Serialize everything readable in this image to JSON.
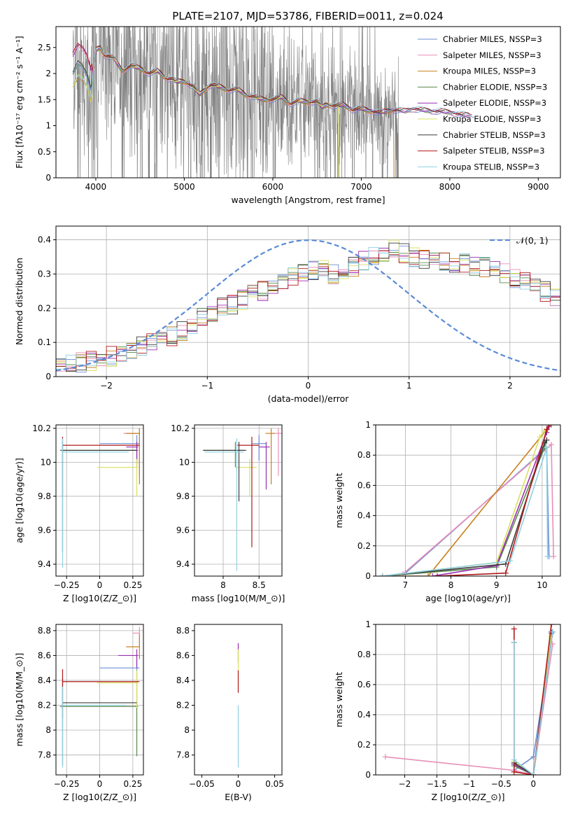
{
  "figure": {
    "title": "PLATE=2107, MJD=53786, FIBERID=0011, z=0.024"
  },
  "colors": {
    "Chabrier MILES": "#6b8fd6",
    "Salpeter MILES": "#e88fb8",
    "Kroupa MILES": "#c8801e",
    "Chabrier ELODIE": "#5a8a4a",
    "Salpeter ELODIE": "#9b2fb3",
    "Kroupa ELODIE": "#d9e060",
    "Chabrier STELIB": "#3d3d3d",
    "Salpeter STELIB": "#b01a1a",
    "Kroupa STELIB": "#8fd0e0",
    "data": "#808080",
    "normal": "#5b8bd6",
    "grid": "#b0b0b0"
  },
  "chart_data": [
    {
      "id": "spectrum",
      "type": "line",
      "title": "PLATE=2107, MJD=53786, FIBERID=0011, z=0.024",
      "xlabel": "wavelength [Angstrom, rest frame]",
      "ylabel": "Flux [f$_\\lambda$10$^{-17}$ erg cm$^{-2}$ s$^{-1}$ A$^{-1}$]",
      "xlim": [
        3550,
        9250
      ],
      "ylim": [
        0,
        2.9
      ],
      "xticks": [
        4000,
        5000,
        6000,
        7000,
        8000,
        9000
      ],
      "yticks": [
        0.0,
        0.5,
        1.0,
        1.5,
        2.0,
        2.5
      ],
      "grid": false,
      "legend_position": "top-right",
      "legend": [
        "Chabrier MILES, N$_{SSP}$=3",
        "Salpeter MILES, N$_{SSP}$=3",
        "Kroupa MILES, N$_{SSP}$=3",
        "Chabrier ELODIE, N$_{SSP}$=3",
        "Salpeter ELODIE, N$_{SSP}$=3",
        "Kroupa ELODIE, N$_{SSP}$=3",
        "Chabrier STELIB, N$_{SSP}$=3",
        "Salpeter STELIB, N$_{SSP}$=3",
        "Kroupa STELIB, N$_{SSP}$=3"
      ],
      "data_range": [
        3740,
        7420
      ],
      "model_curve": {
        "x": [
          3740,
          3800,
          3850,
          3900,
          3950,
          4000,
          4050,
          4100,
          4200,
          4300,
          4400,
          4500,
          4600,
          4700,
          4800,
          4861,
          4900,
          5000,
          5100,
          5175,
          5250,
          5300,
          5400,
          5500,
          5600,
          5700,
          5800,
          5893,
          6000,
          6100,
          6200,
          6300,
          6400,
          6500,
          6563,
          6600,
          6700,
          6800,
          6900,
          7000,
          7100,
          7200,
          7300,
          7400,
          7500,
          7600,
          7700,
          7800,
          7900,
          8000,
          8100,
          8200
        ],
        "y": [
          2.0,
          2.2,
          2.15,
          2.0,
          1.7,
          2.45,
          2.5,
          2.35,
          2.3,
          2.05,
          2.15,
          2.1,
          2.0,
          2.05,
          1.9,
          1.9,
          1.85,
          1.85,
          1.75,
          1.6,
          1.72,
          1.78,
          1.75,
          1.68,
          1.7,
          1.58,
          1.55,
          1.5,
          1.5,
          1.55,
          1.42,
          1.48,
          1.45,
          1.46,
          1.35,
          1.4,
          1.38,
          1.4,
          1.3,
          1.33,
          1.28,
          1.25,
          1.28,
          1.3,
          1.28,
          1.32,
          1.3,
          1.27,
          1.28,
          1.25,
          1.22,
          1.2
        ]
      },
      "curve_ends": [
        8280,
        8240,
        7370,
        8210,
        8230,
        6740,
        8220,
        8260,
        8250
      ]
    },
    {
      "id": "residuals",
      "type": "histogram",
      "xlabel": "(data-model)/error",
      "ylabel": "Normed distribution",
      "xlim": [
        -2.5,
        2.5
      ],
      "ylim": [
        0,
        0.44
      ],
      "xticks": [
        -2,
        -1,
        0,
        1,
        2
      ],
      "yticks": [
        0.0,
        0.1,
        0.2,
        0.3,
        0.4
      ],
      "grid": true,
      "legend_position": "top-right",
      "normal_label": "$\\mathcal{N}(0,1)$",
      "bin_width": 0.1,
      "bin_start": -2.5,
      "base_profile": [
        0.03,
        0.035,
        0.04,
        0.045,
        0.05,
        0.06,
        0.07,
        0.08,
        0.09,
        0.1,
        0.11,
        0.12,
        0.135,
        0.15,
        0.17,
        0.19,
        0.2,
        0.21,
        0.225,
        0.24,
        0.25,
        0.265,
        0.28,
        0.29,
        0.3,
        0.31,
        0.31,
        0.3,
        0.3,
        0.32,
        0.34,
        0.35,
        0.36,
        0.37,
        0.36,
        0.35,
        0.34,
        0.345,
        0.34,
        0.335,
        0.33,
        0.325,
        0.32,
        0.31,
        0.3,
        0.29,
        0.28,
        0.27,
        0.25,
        0.235,
        0.22,
        0.205,
        0.19,
        0.175,
        0.16,
        0.15,
        0.14,
        0.13,
        0.12,
        0.11,
        0.1,
        0.09,
        0.08,
        0.07,
        0.065,
        0.06,
        0.055,
        0.05,
        0.045,
        0.04,
        0.04,
        0.035,
        0.035,
        0.03,
        0.03
      ]
    },
    {
      "id": "age-vs-Z",
      "type": "errorbar",
      "xlabel": "Z [log$_{10}$($Z/Z_\\odot$)]",
      "ylabel": "age  [log$_{10}$($age/yr$)]",
      "xlim": [
        -0.33,
        0.33
      ],
      "ylim": [
        9.33,
        10.22
      ],
      "xticks": [
        -0.25,
        0.0,
        0.25
      ],
      "yticks": [
        9.4,
        9.6,
        9.8,
        10.0,
        10.2
      ],
      "grid": true,
      "points": [
        {
          "model": "Chabrier MILES",
          "x": 0.28,
          "xerr": [
            0.28,
            0.02
          ],
          "y": 10.11,
          "yerr": [
            0.1,
            0.05
          ]
        },
        {
          "model": "Salpeter MILES",
          "x": 0.3,
          "xerr": [
            0.12,
            0.0
          ],
          "y": 10.17,
          "yerr": [
            0.25,
            0.03
          ]
        },
        {
          "model": "Kroupa MILES",
          "x": 0.3,
          "xerr": [
            0.1,
            0.0
          ],
          "y": 10.17,
          "yerr": [
            0.3,
            0.03
          ]
        },
        {
          "model": "Chabrier ELODIE",
          "x": 0.28,
          "xerr": [
            0.58,
            0.01
          ],
          "y": 10.07,
          "yerr": [
            0.1,
            0.05
          ]
        },
        {
          "model": "Salpeter ELODIE",
          "x": 0.28,
          "xerr": [
            0.08,
            0.01
          ],
          "y": 10.09,
          "yerr": [
            0.1,
            0.03
          ]
        },
        {
          "model": "Kroupa ELODIE",
          "x": 0.28,
          "xerr": [
            0.3,
            0.01
          ],
          "y": 9.97,
          "yerr": [
            0.17,
            0.05
          ]
        },
        {
          "model": "Chabrier STELIB",
          "x": -0.28,
          "xerr": [
            0.0,
            0.56
          ],
          "y": 10.07,
          "yerr": [
            0.6,
            0.05
          ]
        },
        {
          "model": "Salpeter STELIB",
          "x": -0.28,
          "xerr": [
            0.0,
            0.58
          ],
          "y": 10.1,
          "yerr": [
            0.3,
            0.05
          ]
        },
        {
          "model": "Kroupa STELIB",
          "x": -0.28,
          "xerr": [
            0.0,
            0.5
          ],
          "y": 10.06,
          "yerr": [
            0.68,
            0.08
          ]
        }
      ]
    },
    {
      "id": "age-vs-mass",
      "type": "errorbar",
      "xlabel": "mass [log$_{10}$($M/M_\\odot$)]",
      "ylabel": "",
      "xlim": [
        7.6,
        8.82
      ],
      "ylim": [
        9.33,
        10.22
      ],
      "xticks": [
        8.0,
        8.5
      ],
      "yticks": [
        9.4,
        9.6,
        9.8,
        10.0,
        10.2
      ],
      "grid": true,
      "points": [
        {
          "model": "Chabrier MILES",
          "x": 8.5,
          "xerr": [
            0.1,
            0.1
          ],
          "y": 10.11,
          "yerr": [
            0.1,
            0.05
          ]
        },
        {
          "model": "Salpeter MILES",
          "x": 8.77,
          "xerr": [
            0.08,
            0.05
          ],
          "y": 10.17,
          "yerr": [
            0.25,
            0.03
          ]
        },
        {
          "model": "Kroupa MILES",
          "x": 8.67,
          "xerr": [
            0.08,
            0.05
          ],
          "y": 10.17,
          "yerr": [
            0.3,
            0.03
          ]
        },
        {
          "model": "Chabrier ELODIE",
          "x": 8.17,
          "xerr": [
            0.45,
            0.1
          ],
          "y": 10.07,
          "yerr": [
            0.1,
            0.05
          ]
        },
        {
          "model": "Salpeter ELODIE",
          "x": 8.6,
          "xerr": [
            0.1,
            0.05
          ],
          "y": 10.09,
          "yerr": [
            0.25,
            0.03
          ]
        },
        {
          "model": "Kroupa ELODIE",
          "x": 8.37,
          "xerr": [
            0.2,
            0.1
          ],
          "y": 9.97,
          "yerr": [
            0.17,
            0.05
          ]
        },
        {
          "model": "Chabrier STELIB",
          "x": 8.22,
          "xerr": [
            0.5,
            0.1
          ],
          "y": 10.07,
          "yerr": [
            0.3,
            0.05
          ]
        },
        {
          "model": "Salpeter STELIB",
          "x": 8.4,
          "xerr": [
            0.2,
            0.1
          ],
          "y": 10.1,
          "yerr": [
            0.6,
            0.05
          ]
        },
        {
          "model": "Kroupa STELIB",
          "x": 8.19,
          "xerr": [
            0.45,
            0.1
          ],
          "y": 10.06,
          "yerr": [
            0.7,
            0.08
          ]
        }
      ]
    },
    {
      "id": "weight-vs-age",
      "type": "line",
      "xlabel": "age  [log$_{10}$($age/yr$)]",
      "ylabel": "mass weight",
      "xlim": [
        6.35,
        10.4
      ],
      "ylim": [
        0,
        1.0
      ],
      "xticks": [
        7,
        8,
        9,
        10
      ],
      "yticks": [
        0.0,
        0.2,
        0.4,
        0.6,
        0.8,
        1.0
      ],
      "grid": true,
      "lines": [
        {
          "model": "Chabrier MILES",
          "x": [
            6.5,
            7.0,
            10.1,
            10.15
          ],
          "y": [
            0.0,
            0.02,
            0.85,
            0.13
          ]
        },
        {
          "model": "Salpeter MILES",
          "x": [
            6.5,
            6.95,
            10.2,
            10.25
          ],
          "y": [
            0.0,
            0.015,
            0.87,
            0.13
          ]
        },
        {
          "model": "Kroupa MILES",
          "x": [
            6.5,
            7.5,
            10.1,
            10.2
          ],
          "y": [
            0.0,
            0.0,
            0.97,
            1.0
          ]
        },
        {
          "model": "Chabrier ELODIE",
          "x": [
            6.5,
            9.0,
            10.05,
            10.1
          ],
          "y": [
            0.0,
            0.06,
            0.85,
            0.9
          ]
        },
        {
          "model": "Salpeter ELODIE",
          "x": [
            7.6,
            9.0,
            10.1,
            10.15
          ],
          "y": [
            0.0,
            0.07,
            0.95,
            0.99
          ]
        },
        {
          "model": "Kroupa ELODIE",
          "x": [
            6.5,
            9.0,
            9.95,
            10.05
          ],
          "y": [
            0.0,
            0.09,
            0.92,
            0.96
          ]
        },
        {
          "model": "Chabrier STELIB",
          "x": [
            6.5,
            9.2,
            10.05,
            10.1
          ],
          "y": [
            0.0,
            0.08,
            0.88,
            0.9
          ]
        },
        {
          "model": "Salpeter STELIB",
          "x": [
            7.7,
            9.2,
            10.1,
            10.15
          ],
          "y": [
            0.0,
            0.02,
            0.97,
            1.0
          ]
        },
        {
          "model": "Kroupa STELIB",
          "x": [
            6.5,
            9.3,
            10.1,
            10.12
          ],
          "y": [
            0.0,
            0.1,
            0.85,
            0.13
          ]
        }
      ]
    },
    {
      "id": "mass-vs-Z",
      "type": "errorbar",
      "xlabel": "Z [log$_{10}$($Z/Z_\\odot$)]",
      "ylabel": "mass [log$_{10}$($M/M_\\odot$)]",
      "xlim": [
        -0.33,
        0.33
      ],
      "ylim": [
        7.64,
        8.85
      ],
      "xticks": [
        -0.25,
        0.0,
        0.25
      ],
      "yticks": [
        7.8,
        8.0,
        8.2,
        8.4,
        8.6,
        8.8
      ],
      "grid": true,
      "points": [
        {
          "model": "Chabrier MILES",
          "x": 0.28,
          "xerr": [
            0.28,
            0.02
          ],
          "y": 8.5,
          "yerr": [
            0.1,
            0.1
          ]
        },
        {
          "model": "Salpeter MILES",
          "x": 0.3,
          "xerr": [
            0.05,
            0.0
          ],
          "y": 8.78,
          "yerr": [
            0.1,
            0.05
          ]
        },
        {
          "model": "Kroupa MILES",
          "x": 0.3,
          "xerr": [
            0.1,
            0.0
          ],
          "y": 8.67,
          "yerr": [
            0.1,
            0.1
          ]
        },
        {
          "model": "Chabrier ELODIE",
          "x": 0.28,
          "xerr": [
            0.58,
            0.01
          ],
          "y": 8.19,
          "yerr": [
            0.4,
            0.2
          ]
        },
        {
          "model": "Salpeter ELODIE",
          "x": 0.28,
          "xerr": [
            0.14,
            0.01
          ],
          "y": 8.6,
          "yerr": [
            0.1,
            0.05
          ]
        },
        {
          "model": "Kroupa ELODIE",
          "x": 0.28,
          "xerr": [
            0.3,
            0.01
          ],
          "y": 8.38,
          "yerr": [
            0.2,
            0.1
          ]
        },
        {
          "model": "Chabrier STELIB",
          "x": -0.28,
          "xerr": [
            0.0,
            0.56
          ],
          "y": 8.22,
          "yerr": [
            0.5,
            0.2
          ]
        },
        {
          "model": "Salpeter STELIB",
          "x": -0.28,
          "xerr": [
            0.0,
            0.58
          ],
          "y": 8.39,
          "yerr": [
            0.3,
            0.1
          ]
        },
        {
          "model": "Kroupa STELIB",
          "x": -0.28,
          "xerr": [
            0.0,
            0.48
          ],
          "y": 8.2,
          "yerr": [
            0.5,
            0.15
          ]
        }
      ]
    },
    {
      "id": "mass-vs-ebv",
      "type": "errorbar",
      "xlabel": "E(B-V)",
      "ylabel": "",
      "xlim": [
        -0.06,
        0.06
      ],
      "ylim": [
        7.64,
        8.85
      ],
      "xticks": [
        -0.05,
        0.0,
        0.05
      ],
      "yticks": [
        7.8,
        8.0,
        8.2,
        8.4,
        8.6,
        8.8
      ],
      "grid": false,
      "points": [
        {
          "model": "Salpeter ELODIE",
          "x": 0.0,
          "xerr": [
            0,
            0
          ],
          "y": 8.6,
          "yerr": [
            0.05,
            0.1
          ]
        },
        {
          "model": "Kroupa ELODIE",
          "x": 0.0,
          "xerr": [
            0,
            0
          ],
          "y": 8.55,
          "yerr": [
            0.2,
            0.1
          ]
        },
        {
          "model": "Salpeter STELIB",
          "x": 0.0,
          "xerr": [
            0,
            0
          ],
          "y": 8.4,
          "yerr": [
            0.1,
            0.08
          ]
        },
        {
          "model": "Kroupa STELIB",
          "x": 0.0,
          "xerr": [
            0,
            0
          ],
          "y": 8.0,
          "yerr": [
            0.3,
            0.2
          ]
        }
      ]
    },
    {
      "id": "weight-vs-Z",
      "type": "line",
      "xlabel": "Z [log$_{10}$($Z/Z_\\odot$)]",
      "ylabel": "mass weight",
      "xlim": [
        -2.45,
        0.42
      ],
      "ylim": [
        0,
        1.0
      ],
      "xticks": [
        -2.0,
        -1.5,
        -1.0,
        -0.5,
        0.0
      ],
      "yticks": [
        0.0,
        0.2,
        0.4,
        0.6,
        0.8,
        1.0
      ],
      "grid": true,
      "lines": [
        {
          "model": "Chabrier MILES",
          "x": [
            -0.3,
            0.0,
            0.3
          ],
          "y": [
            0.03,
            0.12,
            0.95
          ]
        },
        {
          "model": "Salpeter MILES",
          "x": [
            -2.3,
            -0.3,
            0.0,
            0.3
          ],
          "y": [
            0.12,
            0.03,
            0.0,
            0.87
          ]
        },
        {
          "model": "Kroupa MILES",
          "x": [
            -0.3,
            0.0,
            0.28
          ],
          "y": [
            0.0,
            0.0,
            1.0
          ]
        },
        {
          "model": "Chabrier ELODIE",
          "x": [
            -0.3,
            0.0,
            0.28
          ],
          "y": [
            0.06,
            0.0,
            0.94
          ]
        },
        {
          "model": "Salpeter ELODIE",
          "x": [
            -0.3,
            0.0,
            0.28
          ],
          "y": [
            0.07,
            0.0,
            0.95
          ]
        },
        {
          "model": "Kroupa ELODIE",
          "x": [
            -0.3,
            0.0,
            0.27
          ],
          "y": [
            0.09,
            0.0,
            0.92
          ]
        },
        {
          "model": "Chabrier STELIB",
          "x": [
            -0.3,
            -0.3,
            0.0,
            0.3
          ],
          "y": [
            0.88,
            0.08,
            0.0,
            0.95
          ]
        },
        {
          "model": "Salpeter STELIB",
          "x": [
            -0.3,
            -0.3,
            0.0,
            0.28
          ],
          "y": [
            0.97,
            0.02,
            0.0,
            1.0
          ]
        },
        {
          "model": "Kroupa STELIB",
          "x": [
            -0.3,
            -0.3,
            0.0,
            0.3
          ],
          "y": [
            0.88,
            0.1,
            0.0,
            0.95
          ]
        }
      ]
    }
  ]
}
